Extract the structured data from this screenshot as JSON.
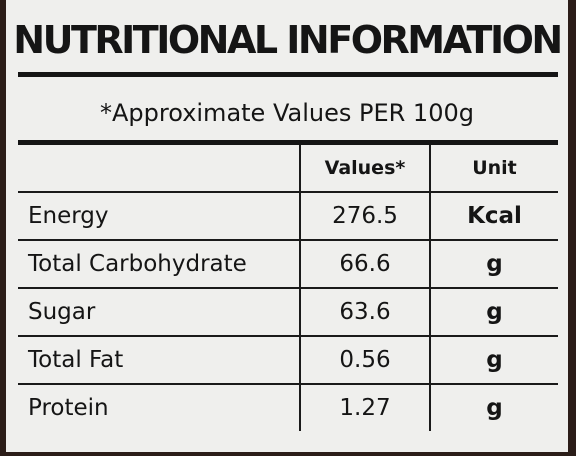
{
  "label": {
    "title": "NUTRITIONAL INFORMATION",
    "subtitle": "*Approximate Values PER 100g",
    "columns": [
      "",
      "Values*",
      "Unit"
    ],
    "rows": [
      {
        "nutrient": "Energy",
        "value": "276.5",
        "unit": "Kcal"
      },
      {
        "nutrient": "Total Carbohydrate",
        "value": "66.6",
        "unit": "g"
      },
      {
        "nutrient": "Sugar",
        "value": "63.6",
        "unit": "g"
      },
      {
        "nutrient": "Total Fat",
        "value": "0.56",
        "unit": "g"
      },
      {
        "nutrient": "Protein",
        "value": "1.27",
        "unit": "g"
      }
    ]
  }
}
